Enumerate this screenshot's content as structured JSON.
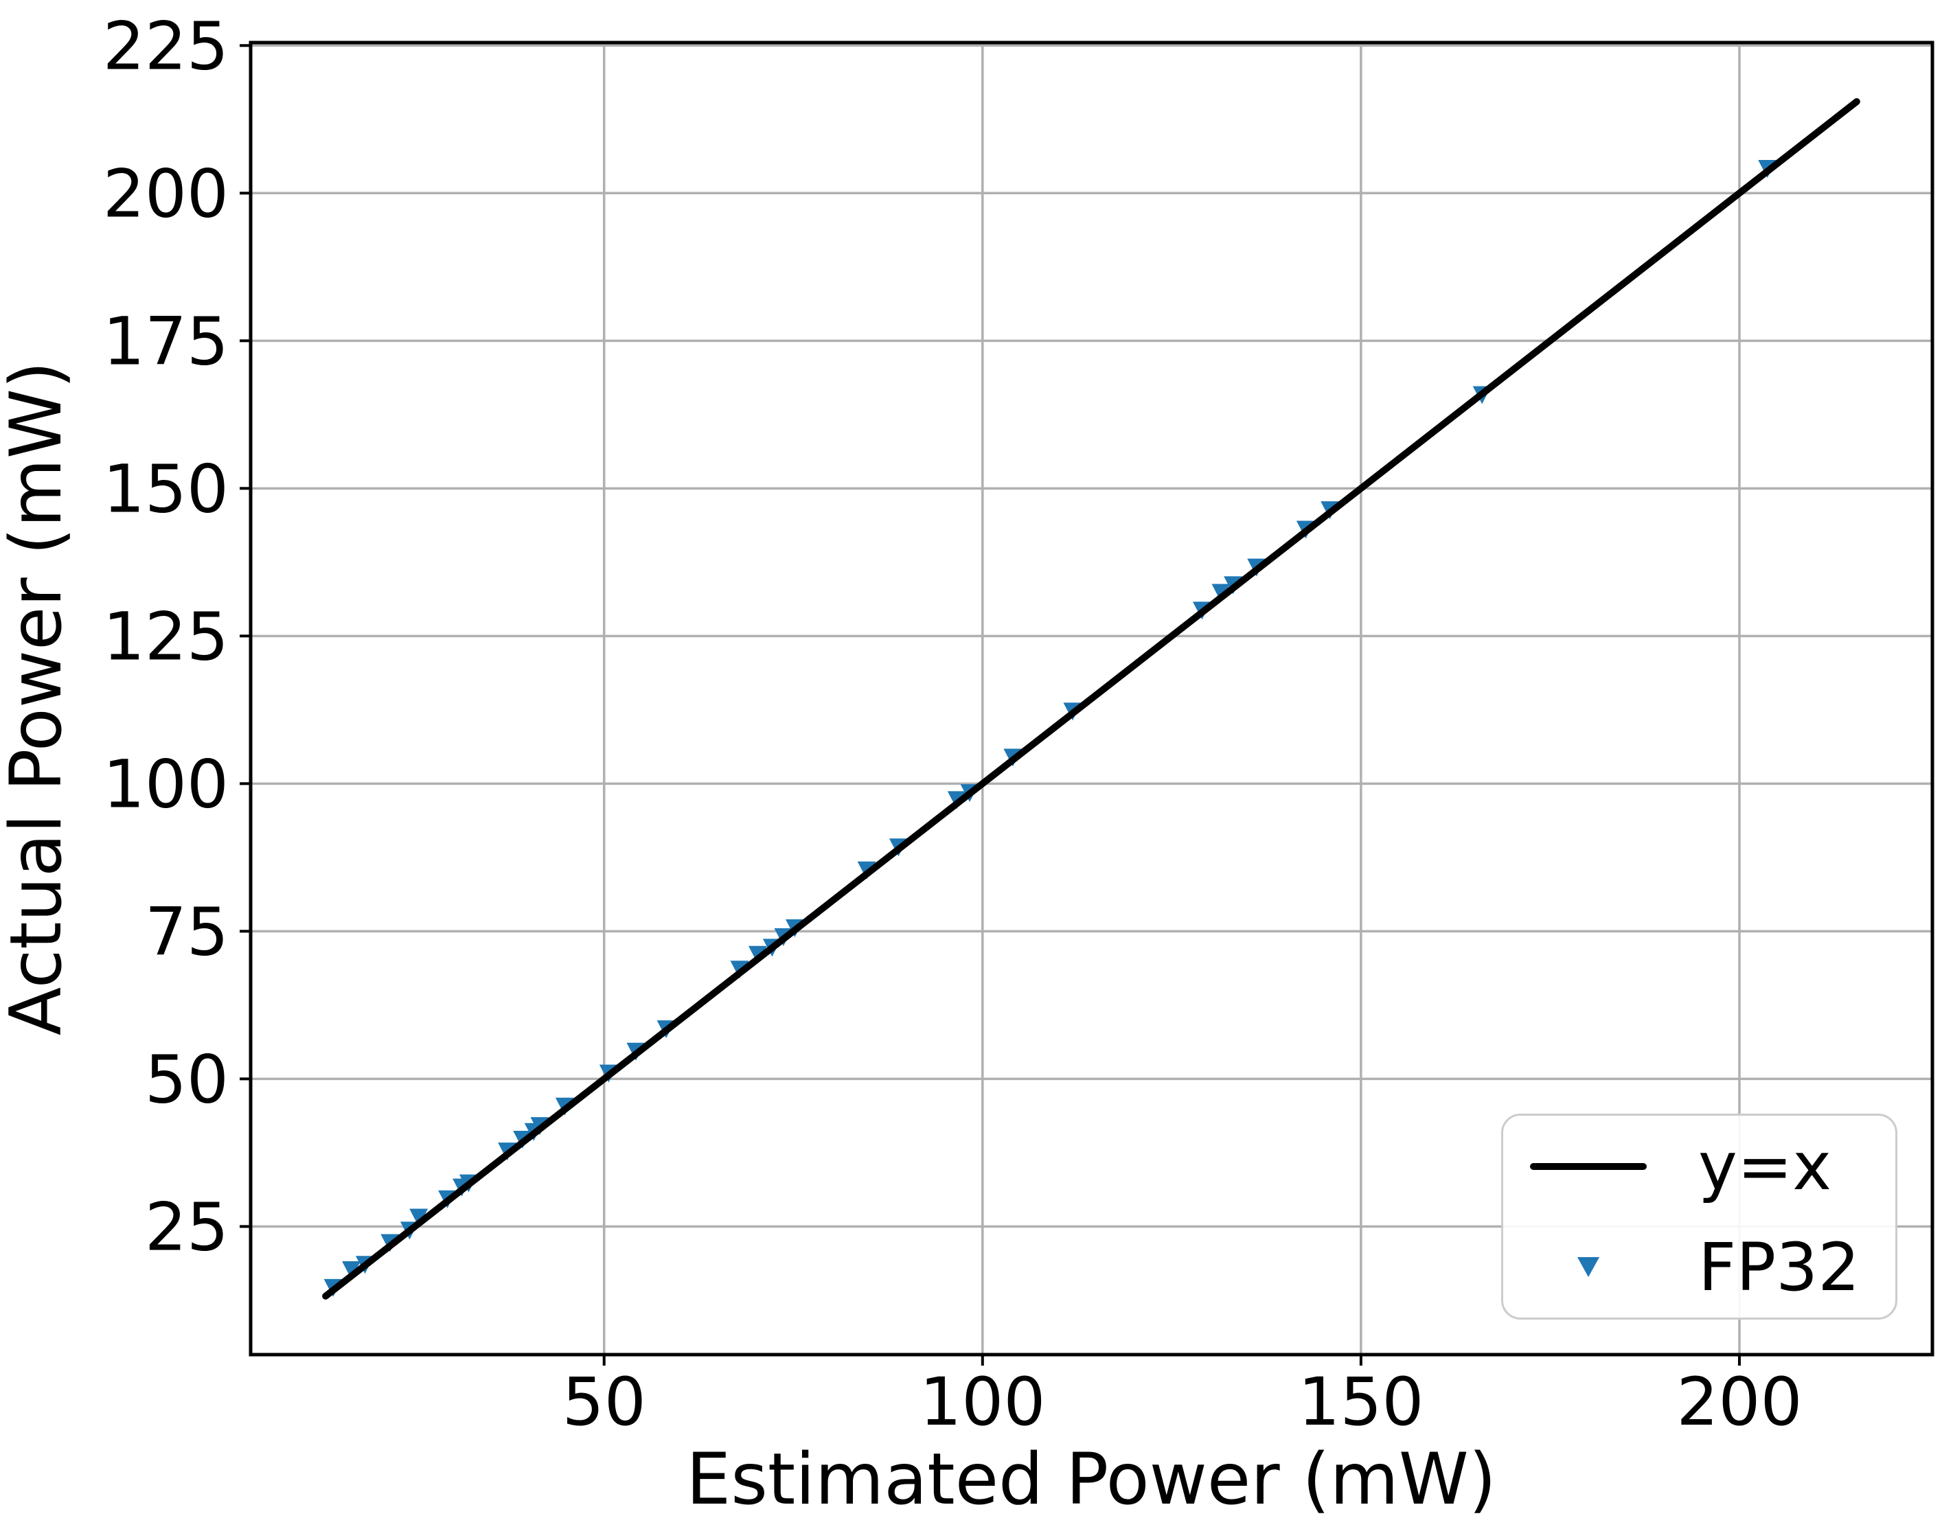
{
  "chart_data": {
    "type": "scatter",
    "title": "",
    "xlabel": "Estimated Power (mW)",
    "ylabel": "Actual Power (mW)",
    "xlim": [
      3.3,
      225.5
    ],
    "ylim": [
      3.3,
      225.5
    ],
    "x_ticks": [
      50,
      100,
      150,
      200
    ],
    "y_ticks": [
      25,
      50,
      75,
      100,
      125,
      150,
      175,
      200,
      225
    ],
    "grid": true,
    "legend_position": "lower right",
    "colors": {
      "grid": "#b0b0b0",
      "spine": "#000000",
      "line": "#000000",
      "marker": "#1f77b4",
      "legend_edge": "#cccccc"
    },
    "series": [
      {
        "name": "y=x",
        "type": "line",
        "color": "#000000",
        "x": [
          13.2,
          215.5
        ],
        "y": [
          13.2,
          215.5
        ]
      },
      {
        "name": "FP32",
        "type": "scatter",
        "marker": "triangle-down",
        "color": "#1f77b4",
        "points": [
          [
            14.2,
            14.6
          ],
          [
            16.6,
            17.6
          ],
          [
            18.4,
            18.5
          ],
          [
            21.7,
            22.2
          ],
          [
            24.3,
            24.3
          ],
          [
            25.5,
            26.5
          ],
          [
            29.3,
            29.6
          ],
          [
            31.2,
            31.6
          ],
          [
            32.1,
            32.3
          ],
          [
            37.2,
            37.7
          ],
          [
            39.2,
            39.7
          ],
          [
            40.7,
            41.0
          ],
          [
            41.5,
            42.0
          ],
          [
            44.8,
            45.3
          ],
          [
            50.6,
            50.9
          ],
          [
            54.2,
            54.6
          ],
          [
            58.2,
            58.4
          ],
          [
            67.9,
            68.5
          ],
          [
            70.3,
            71.0
          ],
          [
            72.2,
            72.2
          ],
          [
            73.7,
            74.0
          ],
          [
            75.2,
            75.5
          ],
          [
            84.7,
            85.3
          ],
          [
            88.9,
            89.2
          ],
          [
            96.6,
            97.2
          ],
          [
            98.3,
            98.4
          ],
          [
            104.0,
            104.4
          ],
          [
            111.9,
            112.2
          ],
          [
            129.0,
            129.3
          ],
          [
            131.5,
            132.3
          ],
          [
            133.1,
            133.6
          ],
          [
            136.2,
            136.6
          ],
          [
            142.7,
            143.0
          ],
          [
            145.9,
            146.3
          ],
          [
            166.0,
            165.8
          ],
          [
            203.7,
            204.1
          ]
        ]
      }
    ]
  }
}
